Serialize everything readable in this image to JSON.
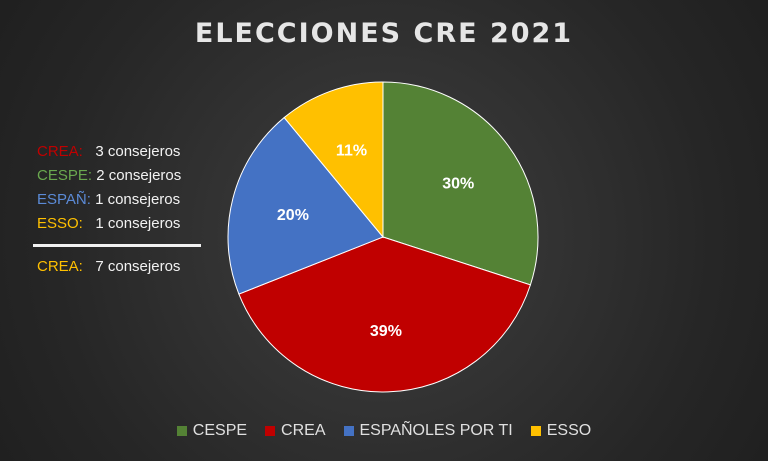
{
  "title": "ELECCIONES CRE 2021",
  "chart_data": {
    "type": "pie",
    "title": "ELECCIONES CRE 2021",
    "categories": [
      "CESPE",
      "CREA",
      "ESPAÑOLES POR TI",
      "ESSO"
    ],
    "values": [
      30,
      39,
      20,
      11
    ],
    "data_labels": [
      "30%",
      "39%",
      "20%",
      "11%"
    ],
    "colors": [
      "#548235",
      "#c00000",
      "#4472c4",
      "#ffc000"
    ],
    "legend_position": "bottom"
  },
  "seats": {
    "rows": [
      {
        "party": "CREA:",
        "count": "3 consejeros",
        "party_color": "#c00000"
      },
      {
        "party": "CESPE:",
        "count": "2 consejeros",
        "party_color": "#548235"
      },
      {
        "party": "ESPAÑ:",
        "count": "1 consejeros",
        "party_color": "#4472c4"
      },
      {
        "party": "ESSO:",
        "count": "1 consejeros",
        "party_color": "#ffc000"
      }
    ],
    "total": {
      "party": "CREA:",
      "count": "7 consejeros",
      "party_color": "#ffc000"
    }
  }
}
